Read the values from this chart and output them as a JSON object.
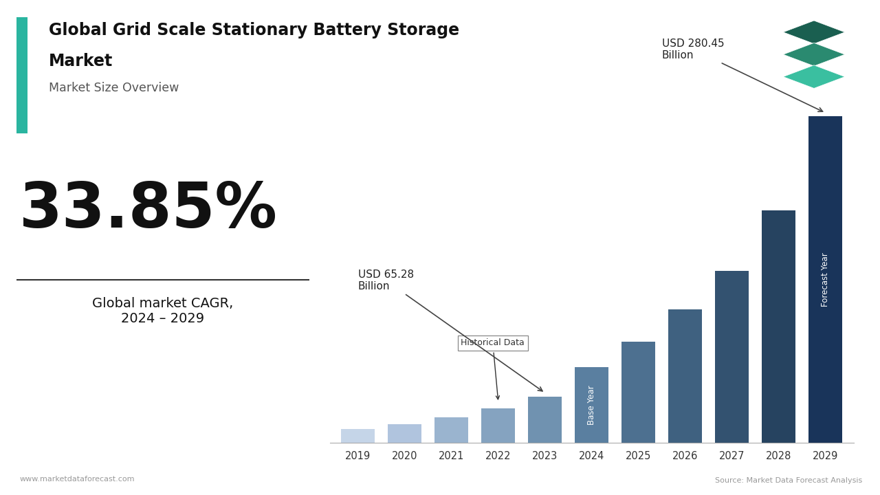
{
  "title_line1": "Global Grid Scale Stationary Battery Storage",
  "title_line2": "Market",
  "subtitle": "Market Size Overview",
  "cagr": "33.85%",
  "cagr_label": "Global market CAGR,\n2024 – 2029",
  "years": [
    2019,
    2020,
    2021,
    2022,
    2023,
    2024,
    2025,
    2026,
    2027,
    2028,
    2029
  ],
  "values": [
    12,
    16,
    22,
    30,
    40,
    65.28,
    87,
    115,
    148,
    200,
    280.45
  ],
  "bar_colors": [
    "#c5d5e8",
    "#b0c4de",
    "#9ab4cf",
    "#85a3c0",
    "#7092b0",
    "#5a7fa0",
    "#4d7090",
    "#3f6180",
    "#335270",
    "#264360",
    "#19345a"
  ],
  "historical_label": "Historical Data",
  "base_year_label": "Base Year",
  "forecast_year_label": "Forecast Year",
  "annot_65_text": "USD 65.28\nBillion",
  "annot_280_text": "USD 280.45\nBillion",
  "teal_bar_color": "#2ab5a0",
  "footer_left": "www.marketdataforecast.com",
  "footer_right": "Source: Market Data Forecast Analysis",
  "background_color": "#ffffff",
  "logo_colors": [
    "#1a5f50",
    "#2a8a70",
    "#3abfa0"
  ]
}
